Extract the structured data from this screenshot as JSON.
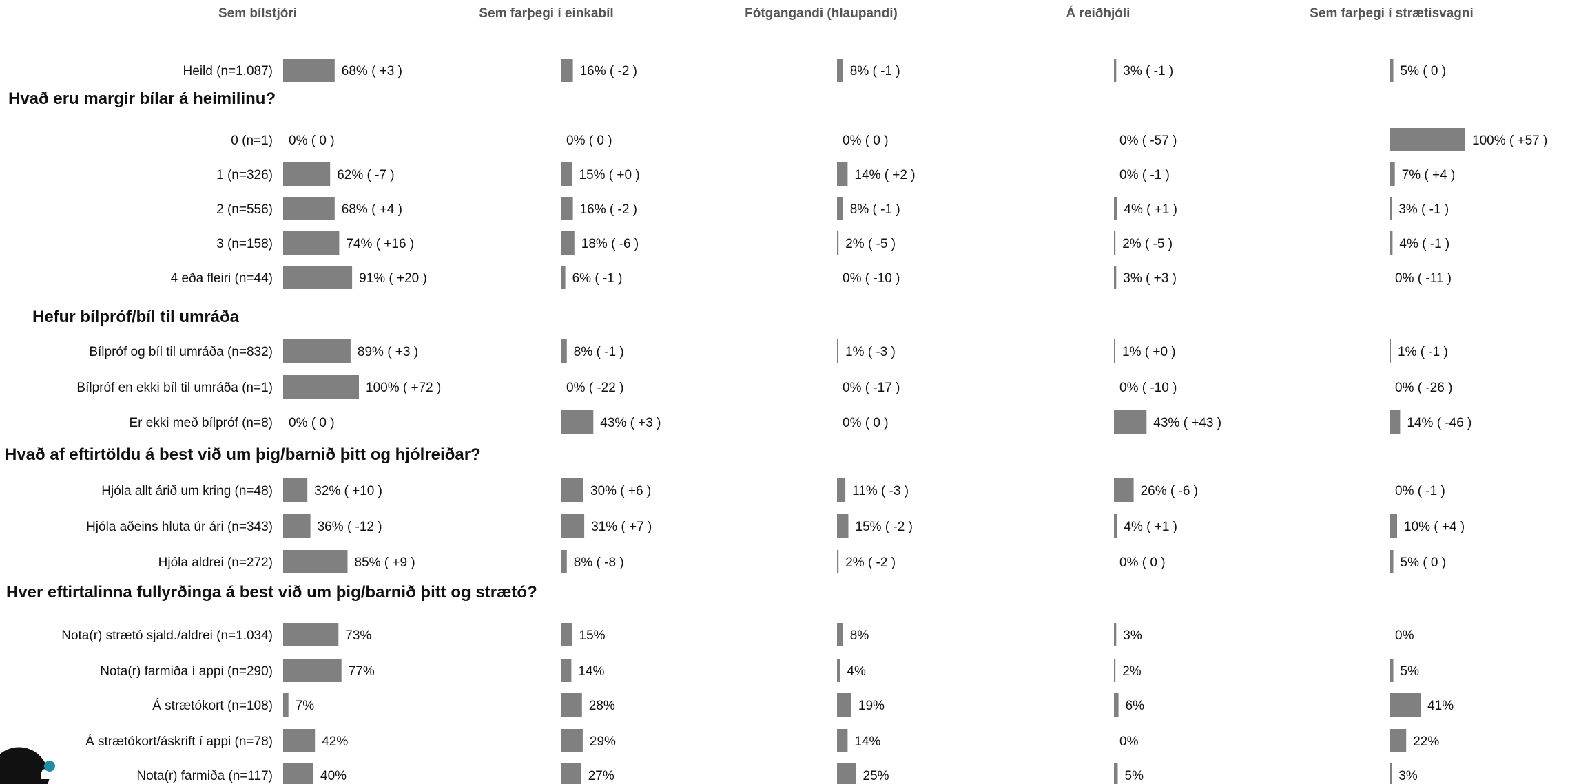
{
  "chart_data": {
    "type": "bar",
    "orientation": "horizontal",
    "bar_color": "#808080",
    "xlim": [
      0,
      100
    ],
    "columns": [
      "Sem bílstjóri",
      "Sem farþegi í einkabíl",
      "Fótgangandi (hlaupandi)",
      "Á reiðhjóli",
      "Sem farþegi í strætisvagni"
    ],
    "groups": [
      {
        "title": "",
        "rows": [
          {
            "label": "Heild (n=1.087)",
            "values": [
              68,
              16,
              8,
              3,
              5
            ],
            "texts": [
              "68% ( +3 )",
              "16% ( -2 )",
              "8% ( -1 )",
              "3% ( -1 )",
              "5% ( 0 )"
            ]
          }
        ]
      },
      {
        "title": "Hvað eru margir bílar á heimilinu?",
        "rows": [
          {
            "label": "0 (n=1)",
            "values": [
              0,
              0,
              0,
              0,
              100
            ],
            "texts": [
              "0% ( 0 )",
              "0% ( 0 )",
              "0% ( 0 )",
              "0% ( -57 )",
              "100% ( +57 )"
            ]
          },
          {
            "label": "1 (n=326)",
            "values": [
              62,
              15,
              14,
              0,
              7
            ],
            "texts": [
              "62% ( -7 )",
              "15% ( +0 )",
              "14% ( +2 )",
              "0% ( -1 )",
              "7% ( +4 )"
            ]
          },
          {
            "label": "2 (n=556)",
            "values": [
              68,
              16,
              8,
              4,
              3
            ],
            "texts": [
              "68% ( +4 )",
              "16% ( -2 )",
              "8% ( -1 )",
              "4% ( +1 )",
              "3% ( -1 )"
            ]
          },
          {
            "label": "3 (n=158)",
            "values": [
              74,
              18,
              2,
              2,
              4
            ],
            "texts": [
              "74% ( +16 )",
              "18% ( -6 )",
              "2% ( -5 )",
              "2% ( -5 )",
              "4% ( -1 )"
            ]
          },
          {
            "label": "4 eða fleiri (n=44)",
            "values": [
              91,
              6,
              0,
              3,
              0
            ],
            "texts": [
              "91% ( +20 )",
              "6% ( -1 )",
              "0% ( -10 )",
              "3% ( +3 )",
              "0% ( -11 )"
            ]
          }
        ]
      },
      {
        "title": "Hefur bílpróf/bíl til umráða",
        "rows": [
          {
            "label": "Bílpróf og bíl til umráða (n=832)",
            "values": [
              89,
              8,
              1,
              1,
              1
            ],
            "texts": [
              "89% ( +3 )",
              "8% ( -1 )",
              "1% ( -3 )",
              "1% ( +0 )",
              "1% ( -1 )"
            ]
          },
          {
            "label": "Bílpróf en ekki bíl til umráða (n=1)",
            "values": [
              100,
              0,
              0,
              0,
              0
            ],
            "texts": [
              "100% ( +72 )",
              "0% ( -22 )",
              "0% ( -17 )",
              "0% ( -10 )",
              "0% ( -26 )"
            ]
          },
          {
            "label": "Er ekki með bílpróf (n=8)",
            "values": [
              0,
              43,
              0,
              43,
              14
            ],
            "texts": [
              "0% ( 0 )",
              "43% ( +3 )",
              "0% ( 0 )",
              "43% ( +43 )",
              "14% ( -46 )"
            ]
          }
        ]
      },
      {
        "title": "Hvað af eftirtöldu á best við um þig/barnið þitt og hjólreiðar?",
        "rows": [
          {
            "label": "Hjóla allt árið um kring (n=48)",
            "values": [
              32,
              30,
              11,
              26,
              0
            ],
            "texts": [
              "32% ( +10 )",
              "30% ( +6 )",
              "11% ( -3 )",
              "26% ( -6 )",
              "0% ( -1 )"
            ]
          },
          {
            "label": "Hjóla aðeins hluta úr ári (n=343)",
            "values": [
              36,
              31,
              15,
              4,
              10
            ],
            "texts": [
              "36% ( -12 )",
              "31% ( +7 )",
              "15% ( -2 )",
              "4% ( +1 )",
              "10% ( +4 )"
            ]
          },
          {
            "label": "Hjóla aldrei (n=272)",
            "values": [
              85,
              8,
              2,
              0,
              5
            ],
            "texts": [
              "85% ( +9 )",
              "8% ( -8 )",
              "2% ( -2 )",
              "0% ( 0 )",
              "5% ( 0 )"
            ]
          }
        ]
      },
      {
        "title": "Hver eftirtalinna fullyrðinga á best við um þig/barnið þitt og strætó?",
        "rows": [
          {
            "label": "Nota(r) strætó sjald./aldrei (n=1.034)",
            "values": [
              73,
              15,
              8,
              3,
              0
            ],
            "texts": [
              "73%",
              "15%",
              "8%",
              "3%",
              "0%"
            ]
          },
          {
            "label": "Nota(r) farmiða í appi (n=290)",
            "values": [
              77,
              14,
              4,
              2,
              5
            ],
            "texts": [
              "77%",
              "14%",
              "4%",
              "2%",
              "5%"
            ]
          },
          {
            "label": "Á strætókort (n=108)",
            "values": [
              7,
              28,
              19,
              6,
              41
            ],
            "texts": [
              "7%",
              "28%",
              "19%",
              "6%",
              "41%"
            ]
          },
          {
            "label": "Á strætókort/áskrift í appi (n=78)",
            "values": [
              42,
              29,
              14,
              0,
              22
            ],
            "texts": [
              "42%",
              "29%",
              "14%",
              "0%",
              "22%"
            ]
          },
          {
            "label": "Nota(r) farmiða (n=117)",
            "values": [
              40,
              27,
              25,
              5,
              3
            ],
            "texts": [
              "40%",
              "27%",
              "25%",
              "5%",
              "3%"
            ]
          }
        ]
      }
    ]
  },
  "logo": {
    "icon": "gallup-g-logo-icon",
    "dot_color": "#1f8ea3"
  }
}
